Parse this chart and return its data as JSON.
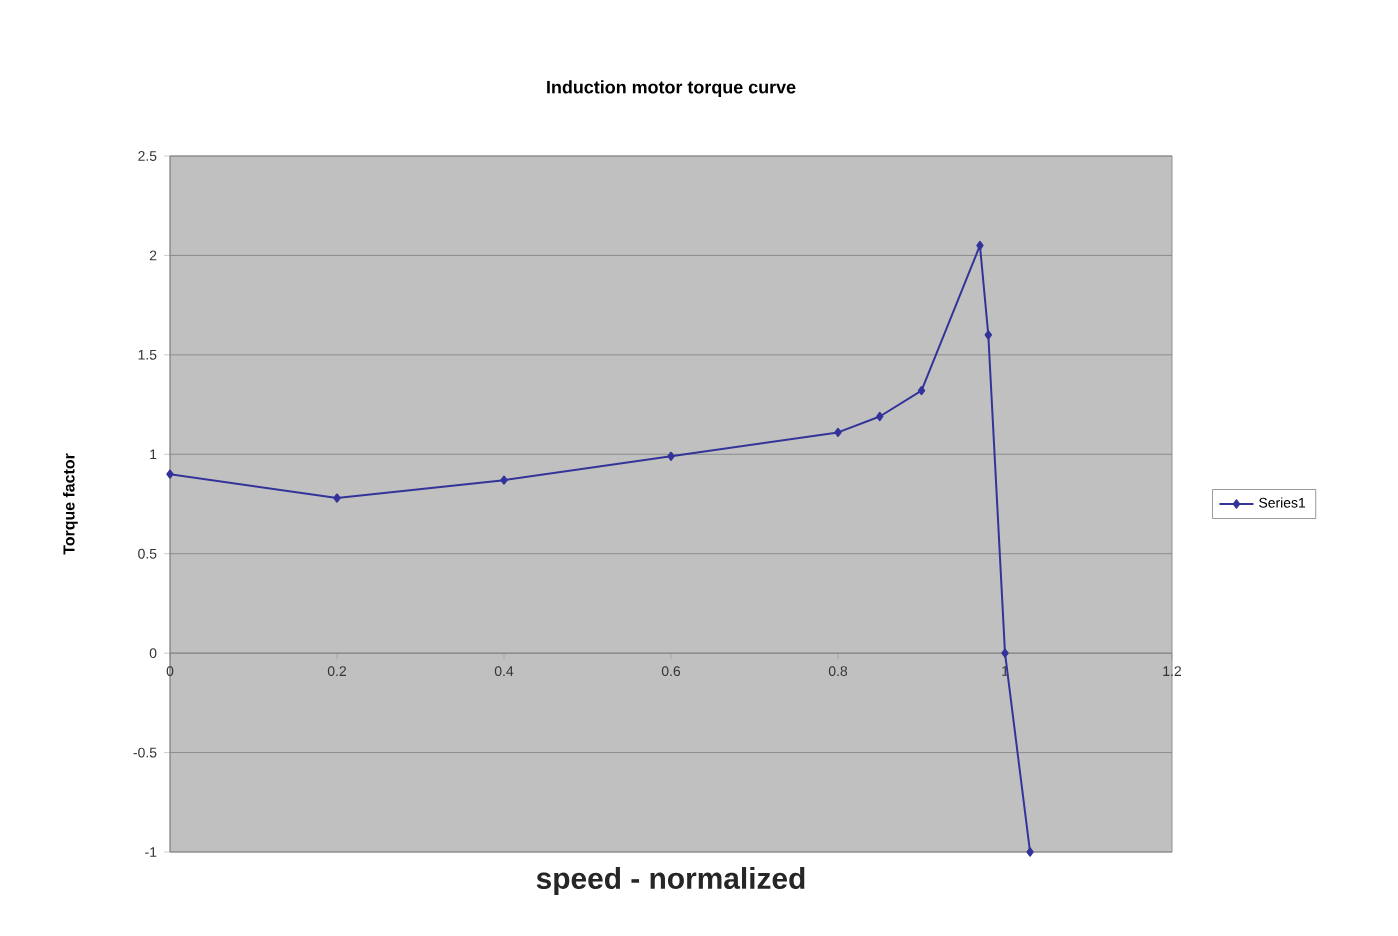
{
  "chart_data": {
    "type": "line",
    "title": "Induction motor torque curve",
    "xlabel": "speed - normalized",
    "ylabel": "Torque factor",
    "series": [
      {
        "name": "Series1",
        "color": "#333399",
        "x": [
          0,
          0.2,
          0.4,
          0.6,
          0.8,
          0.85,
          0.9,
          0.97,
          0.98,
          1.0,
          1.03
        ],
        "values": [
          0.9,
          0.78,
          0.87,
          0.99,
          1.11,
          1.19,
          1.32,
          2.05,
          1.6,
          0,
          -1
        ]
      }
    ],
    "xlim": [
      0,
      1.2
    ],
    "xticks": [
      0,
      0.2,
      0.4,
      0.6,
      0.8,
      1,
      1.2
    ],
    "ylim": [
      -1,
      2.5
    ],
    "yticks": [
      -1,
      -0.5,
      0,
      0.5,
      1,
      1.5,
      2,
      2.5
    ],
    "grid": "y",
    "legend": "right",
    "marker": "diamond",
    "line_style": "solid"
  }
}
